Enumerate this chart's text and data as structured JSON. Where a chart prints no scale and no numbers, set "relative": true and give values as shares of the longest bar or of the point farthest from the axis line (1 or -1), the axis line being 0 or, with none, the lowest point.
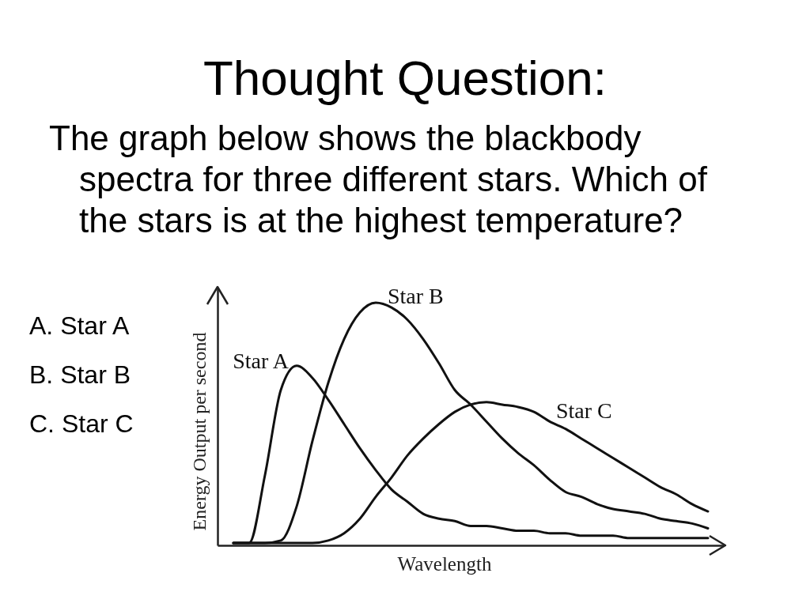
{
  "chart_data": {
    "type": "line",
    "title": "Thought Question:",
    "subtitle": "The graph below shows the blackbody spectra for three different stars. Which of the stars is at the highest temperature?",
    "xlabel": "Wavelength",
    "ylabel": "Energy Output per second",
    "annotations": [
      "A. Star A",
      "B. Star B",
      "C. Star C"
    ],
    "relative": true,
    "legend": false,
    "categories": [
      null,
      null,
      null,
      null,
      null,
      null,
      null,
      null,
      null,
      null,
      null,
      null,
      null,
      null,
      null,
      null,
      null,
      null,
      null,
      null,
      null,
      null,
      null,
      null,
      null,
      null,
      null,
      null,
      null,
      null,
      null
    ],
    "series": [
      {
        "name": "Star A",
        "color": "#111111",
        "values": [
          0.01,
          0.01,
          0.29,
          0.64,
          0.74,
          0.69,
          0.6,
          0.5,
          0.4,
          0.31,
          0.23,
          0.18,
          0.13,
          0.11,
          0.1,
          0.08,
          0.08,
          0.07,
          0.06,
          0.06,
          0.05,
          0.05,
          0.04,
          0.04,
          0.04,
          0.03,
          0.03,
          0.03,
          0.03,
          0.03,
          0.03
        ]
      },
      {
        "name": "Star B",
        "color": "#111111",
        "values": [
          0.01,
          0.01,
          0.01,
          0.02,
          0.16,
          0.43,
          0.67,
          0.85,
          0.96,
          1.0,
          0.98,
          0.93,
          0.85,
          0.75,
          0.64,
          0.58,
          0.51,
          0.44,
          0.38,
          0.33,
          0.27,
          0.22,
          0.2,
          0.17,
          0.15,
          0.14,
          0.13,
          0.11,
          0.1,
          0.09,
          0.07
        ]
      },
      {
        "name": "Star C",
        "color": "#111111",
        "values": [
          0.01,
          0.01,
          0.01,
          0.01,
          0.01,
          0.01,
          0.02,
          0.05,
          0.11,
          0.2,
          0.28,
          0.37,
          0.44,
          0.5,
          0.55,
          0.58,
          0.59,
          0.58,
          0.57,
          0.55,
          0.51,
          0.48,
          0.44,
          0.4,
          0.36,
          0.32,
          0.28,
          0.24,
          0.21,
          0.17,
          0.14
        ]
      }
    ]
  }
}
